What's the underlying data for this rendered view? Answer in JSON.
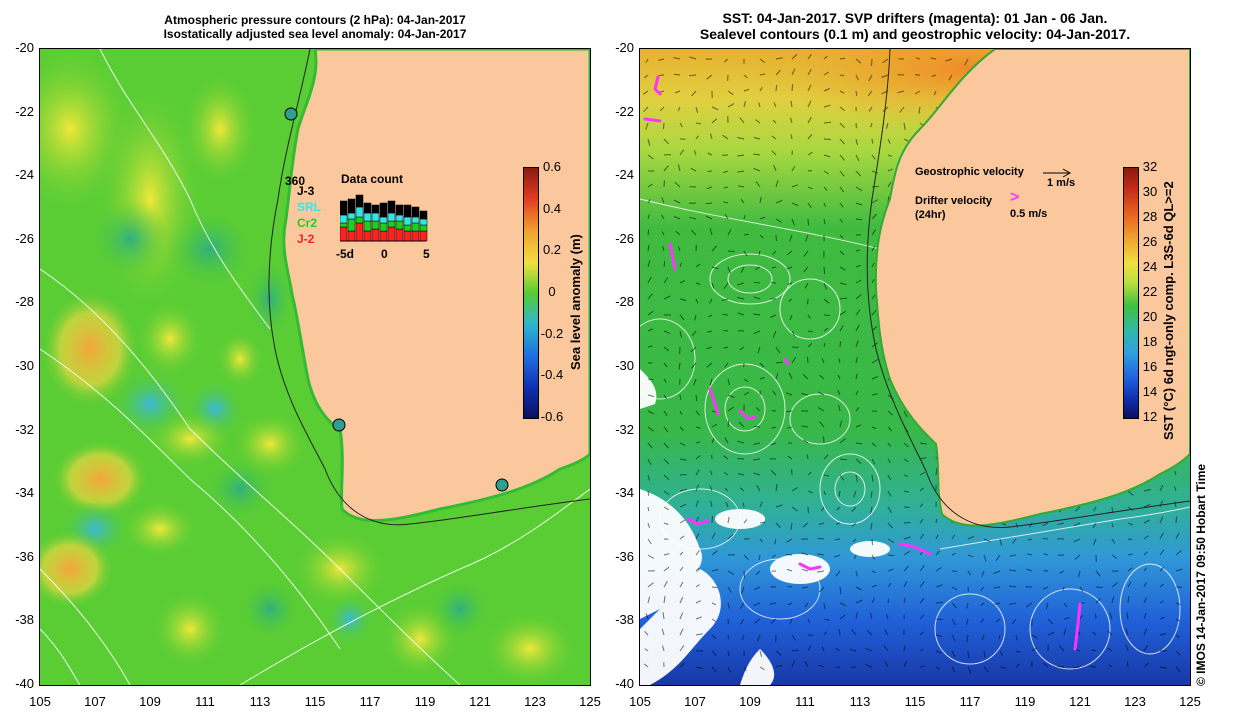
{
  "left_panel": {
    "title_line1": "Atmospheric pressure contours (2 hPa): 04-Jan-2017",
    "title_line2": "Isostatically adjusted sea level anomaly: 04-Jan-2017",
    "colorbar": {
      "label": "Sea level anomaly (m)",
      "ticks": [
        "0.6",
        "0.4",
        "0.2",
        "0",
        "-0.2",
        "-0.4",
        "-0.6"
      ]
    },
    "inset": {
      "title": "Data count",
      "max_label": "360",
      "series": [
        {
          "name": "J-3",
          "color": "#000000"
        },
        {
          "name": "SRL",
          "color": "#33e6e6"
        },
        {
          "name": "Cr2",
          "color": "#22cc22"
        },
        {
          "name": "J-2",
          "color": "#ff2020"
        }
      ],
      "x_labels": [
        "-5d",
        "0",
        "5"
      ]
    }
  },
  "right_panel": {
    "title_line1": "SST: 04-Jan-2017. SVP drifters (magenta): 01 Jan - 06 Jan.",
    "title_line2": "Sealevel contours (0.1 m) and geostrophic velocity: 04-Jan-2017.",
    "colorbar": {
      "label": "SST (°C) 6d ngt-only comp. L3S-6d QL>=2",
      "ticks": [
        "32",
        "30",
        "28",
        "26",
        "24",
        "22",
        "20",
        "18",
        "16",
        "14",
        "12"
      ]
    },
    "legend": {
      "geo_label": "Geostrophic velocity",
      "geo_scale": "1 m/s",
      "drifter_label": "Drifter velocity",
      "drifter_sub": "(24hr)",
      "drifter_scale": "0.5 m/s",
      "drifter_color": "#ff33ff"
    },
    "credit": "©  IMOS 14-Jan-2017 09:50 Hobart Time"
  },
  "axes": {
    "x_ticks": [
      "105",
      "107",
      "109",
      "111",
      "113",
      "115",
      "117",
      "119",
      "121",
      "123",
      "125"
    ],
    "y_ticks": [
      "-20",
      "-22",
      "-24",
      "-26",
      "-28",
      "-30",
      "-32",
      "-34",
      "-36",
      "-38",
      "-40"
    ]
  },
  "colors": {
    "land": "#fbc89d",
    "sla_green": "#55cc33",
    "sst_green": "#33b840",
    "sst_blue": "#1f6fe0",
    "contour_white": "#ffffff"
  }
}
